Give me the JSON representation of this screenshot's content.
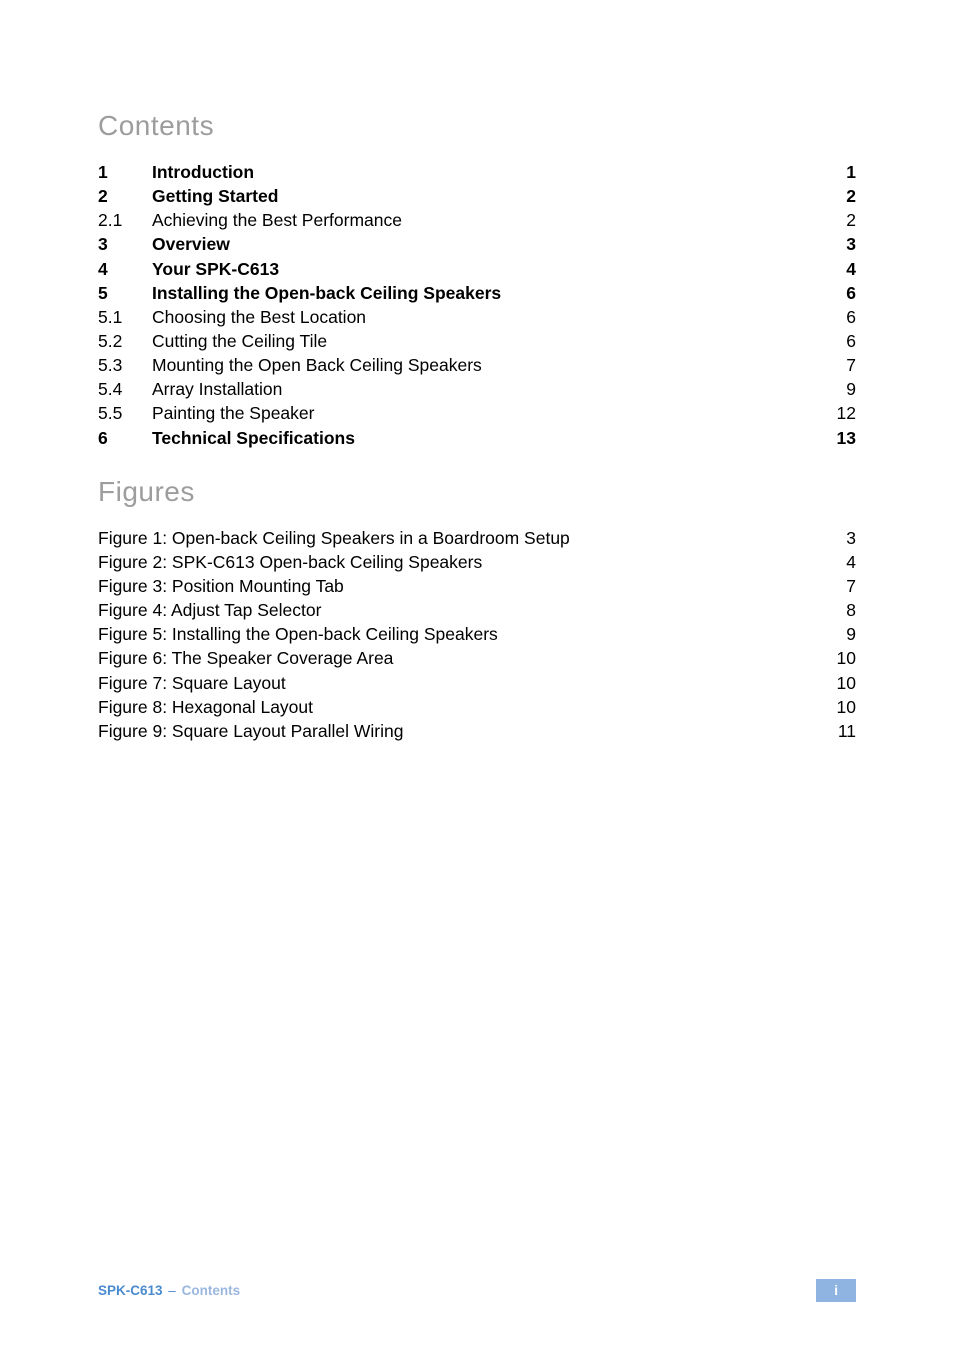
{
  "headings": {
    "contents": "Contents",
    "figures": "Figures"
  },
  "toc": [
    {
      "num": "1",
      "title": "Introduction",
      "page": "1",
      "bold": true
    },
    {
      "num": "2",
      "title": "Getting Started",
      "page": "2",
      "bold": true
    },
    {
      "num": "2.1",
      "title": "Achieving the Best Performance",
      "page": "2",
      "bold": false
    },
    {
      "num": "3",
      "title": "Overview",
      "page": "3",
      "bold": true
    },
    {
      "num": "4",
      "title": "Your SPK-C613",
      "page": "4",
      "bold": true
    },
    {
      "num": "5",
      "title": "Installing the Open-back Ceiling Speakers",
      "page": "6",
      "bold": true
    },
    {
      "num": "5.1",
      "title": "Choosing the Best Location",
      "page": "6",
      "bold": false
    },
    {
      "num": "5.2",
      "title": "Cutting the Ceiling Tile",
      "page": "6",
      "bold": false
    },
    {
      "num": "5.3",
      "title": "Mounting the Open Back Ceiling Speakers",
      "page": "7",
      "bold": false
    },
    {
      "num": "5.4",
      "title": "Array Installation",
      "page": "9",
      "bold": false
    },
    {
      "num": "5.5",
      "title": "Painting the Speaker",
      "page": "12",
      "bold": false
    },
    {
      "num": "6",
      "title": "Technical Specifications",
      "page": "13",
      "bold": true
    }
  ],
  "figures": [
    {
      "title": "Figure 1: Open-back Ceiling Speakers in a Boardroom Setup",
      "page": "3"
    },
    {
      "title": "Figure 2: SPK-C613 Open-back Ceiling Speakers",
      "page": "4"
    },
    {
      "title": "Figure 3: Position Mounting Tab",
      "page": "7"
    },
    {
      "title": "Figure 4: Adjust Tap Selector",
      "page": "8"
    },
    {
      "title": "Figure 5: Installing the Open-back Ceiling Speakers",
      "page": "9"
    },
    {
      "title": "Figure 6: The Speaker Coverage Area",
      "page": "10"
    },
    {
      "title": "Figure 7: Square Layout",
      "page": "10"
    },
    {
      "title": "Figure 8: Hexagonal Layout",
      "page": "10"
    },
    {
      "title": "Figure 9: Square Layout Parallel Wiring",
      "page": "11"
    }
  ],
  "footer": {
    "product": "SPK-C613",
    "separator": "–",
    "section": "Contents",
    "page": "i"
  },
  "colors": {
    "heading_gray": "#9d9d9d",
    "footer_blue": "#4a8bd0",
    "footer_light": "#9bb7df",
    "footer_bg": "#8fb4e2",
    "footer_fg": "#ffffff"
  }
}
